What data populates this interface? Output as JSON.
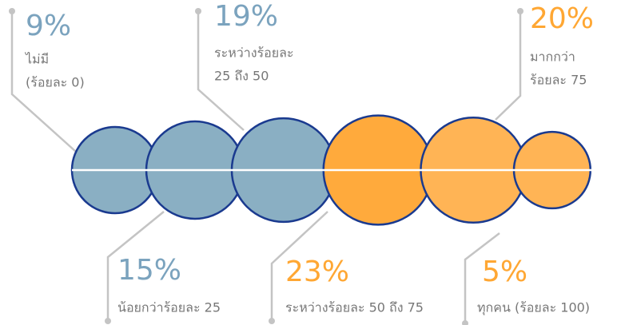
{
  "chart_data": {
    "type": "bubble",
    "categories": [
      [
        "ไม่มี",
        "(ร้อยละ 0)"
      ],
      [
        "น้อยกว่าร้อยละ 25"
      ],
      [
        "ระหว่างร้อยละ",
        "25 ถึง 50"
      ],
      [
        "ระหว่างร้อยละ 50 ถึง 75"
      ],
      [
        "มากกว่า",
        "ร้อยละ 75"
      ],
      [
        "ทุกคน  (ร้อยละ 100)"
      ]
    ],
    "values": [
      9,
      15,
      19,
      23,
      20,
      5
    ],
    "value_labels": [
      "9%",
      "15%",
      "19%",
      "23%",
      "20%",
      "5%"
    ],
    "colors": [
      "#8aafc3",
      "#8aafc3",
      "#8aafc3",
      "#ffaa3c",
      "#ffb455",
      "#ffb455"
    ],
    "label_colors": [
      "#7ba3be",
      "#7ba3be",
      "#7ba3be",
      "#ffa733",
      "#ffa733",
      "#ffa733"
    ]
  }
}
